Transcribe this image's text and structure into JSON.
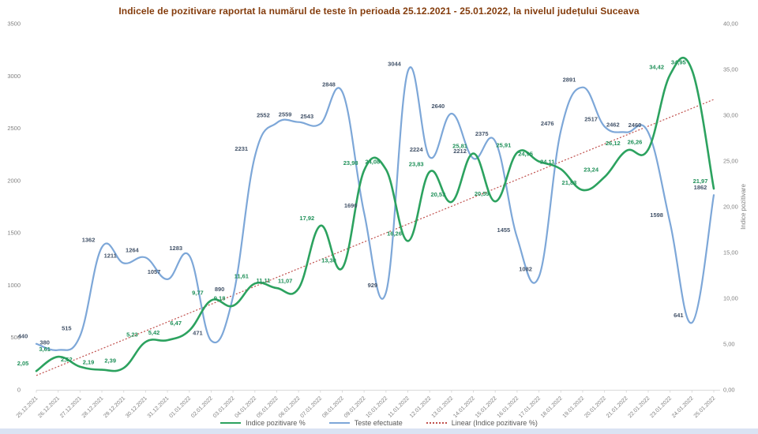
{
  "chart_data": {
    "type": "line",
    "title": "Indicele de pozitivare raportat la numărul de teste în perioada 25.12.2021 - 25.01.2022, la nivelul județului Suceava",
    "title_color": "#843c0c",
    "grid": "off",
    "legend_position": "bottom",
    "categories": [
      "25.12.2021",
      "26.12.2021",
      "27.12.2021",
      "28.12.2021",
      "29.12.2021",
      "30.12.2021",
      "31.12.2021",
      "01.01.2022",
      "02.01.2022",
      "03.01.2022",
      "04.01.2022",
      "05.01.2022",
      "06.01.2022",
      "07.01.2022",
      "08.01.2022",
      "09.01.2022",
      "10.01.2022",
      "11.01.2022",
      "12.01.2022",
      "13.01.2022",
      "14.01.2022",
      "15.01.2022",
      "16.01.2022",
      "17.01.2022",
      "18.01.2022",
      "19.01.2022",
      "20.01.2022",
      "21.01.2022",
      "22.01.2022",
      "23.01.2022",
      "24.01.2022",
      "25.01.2022"
    ],
    "series": [
      {
        "name": "Teste efectuate",
        "axis": "left",
        "color": "#7da7d8",
        "label_color": "#44546a",
        "values": [
          440,
          380,
          515,
          1362,
          1211,
          1264,
          1057,
          1283,
          471,
          890,
          2231,
          2552,
          2559,
          2543,
          2848,
          1690,
          929,
          3044,
          2224,
          2640,
          2212,
          2375,
          1455,
          1082,
          2476,
          2891,
          2517,
          2462,
          2460,
          1598,
          641,
          1862
        ],
        "labels": [
          "440",
          "380",
          "515",
          "1362",
          "1211",
          "1264",
          "1057",
          "1283",
          "471",
          "890",
          "2231",
          "2552",
          "2559",
          "2543",
          "2848",
          "1690",
          "929",
          "3044",
          "2224",
          "2640",
          "2212",
          "2375",
          "1455",
          "1082",
          "2476",
          "2891",
          "2517",
          "2462",
          "2460",
          "1598",
          "641",
          "1862"
        ]
      },
      {
        "name": "Indice pozitivare %",
        "axis": "right",
        "color": "#2ca25f",
        "label_color": "#21915a",
        "values": [
          2.05,
          3.61,
          2.52,
          2.19,
          2.39,
          5.23,
          5.42,
          6.47,
          9.77,
          9.18,
          11.61,
          11.11,
          11.07,
          17.92,
          13.3,
          23.98,
          24.08,
          16.26,
          23.83,
          20.53,
          25.81,
          20.59,
          25.91,
          24.95,
          24.11,
          21.83,
          23.24,
          26.12,
          26.26,
          34.42,
          34.95,
          21.97
        ],
        "labels": [
          "2,05",
          "3,61",
          "2,52",
          "2,19",
          "2,39",
          "5,23",
          "5,42",
          "6,47",
          "9,77",
          "9,18",
          "11,61",
          "11,11",
          "11,07",
          "17,92",
          "13,30",
          "23,98",
          "24,08",
          "16,26",
          "23,83",
          "20,53",
          "25,81",
          "20,59",
          "25,91",
          "24,95",
          "24,11",
          "21,83",
          "23,24",
          "26,12",
          "26,26",
          "34,42",
          "34,95",
          "21,97"
        ]
      }
    ],
    "trendline": {
      "name": "Linear (Indice pozitivare %)",
      "based_on": "Indice pozitivare %",
      "color": "#c0504d",
      "style": "dotted"
    },
    "axes": {
      "left": {
        "min": 0,
        "max": 3500,
        "ticks": [
          "0",
          "500",
          "1000",
          "1500",
          "2000",
          "2500",
          "3000",
          "3500"
        ]
      },
      "right": {
        "min": 0,
        "max": 40,
        "title": "Indice pozitivare",
        "ticks": [
          "0,00",
          "5,00",
          "10,00",
          "15,00",
          "20,00",
          "25,00",
          "30,00",
          "35,00",
          "40,00"
        ]
      }
    },
    "legend": {
      "items": [
        {
          "label": "Indice pozitivare %",
          "swatch": "green-line"
        },
        {
          "label": "Teste efectuate",
          "swatch": "blue-line"
        },
        {
          "label": "Linear (Indice pozitivare %)",
          "swatch": "red-dotted"
        }
      ]
    }
  }
}
